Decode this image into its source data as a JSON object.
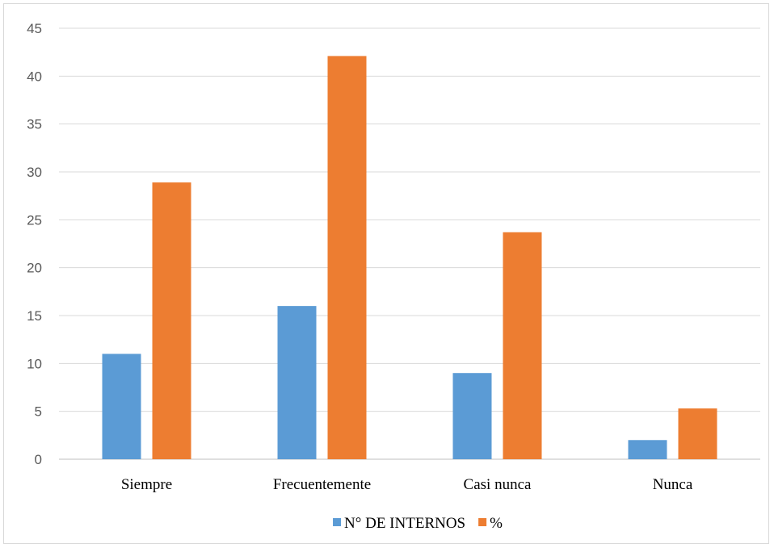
{
  "chart_data": {
    "type": "bar",
    "categories": [
      "Siempre",
      "Frecuentemente",
      "Casi nunca",
      "Nunca"
    ],
    "series": [
      {
        "name": "N° DE INTERNOS",
        "color": "#5b9bd5",
        "values": [
          11,
          16,
          9,
          2
        ]
      },
      {
        "name": "%",
        "color": "#ed7d31",
        "values": [
          28.9,
          42.1,
          23.7,
          5.3
        ]
      }
    ],
    "ylim": [
      0,
      45
    ],
    "yticks": [
      0,
      5,
      10,
      15,
      20,
      25,
      30,
      35,
      40,
      45
    ],
    "grid": true,
    "legend_position": "bottom",
    "title": "",
    "xlabel": "",
    "ylabel": ""
  }
}
